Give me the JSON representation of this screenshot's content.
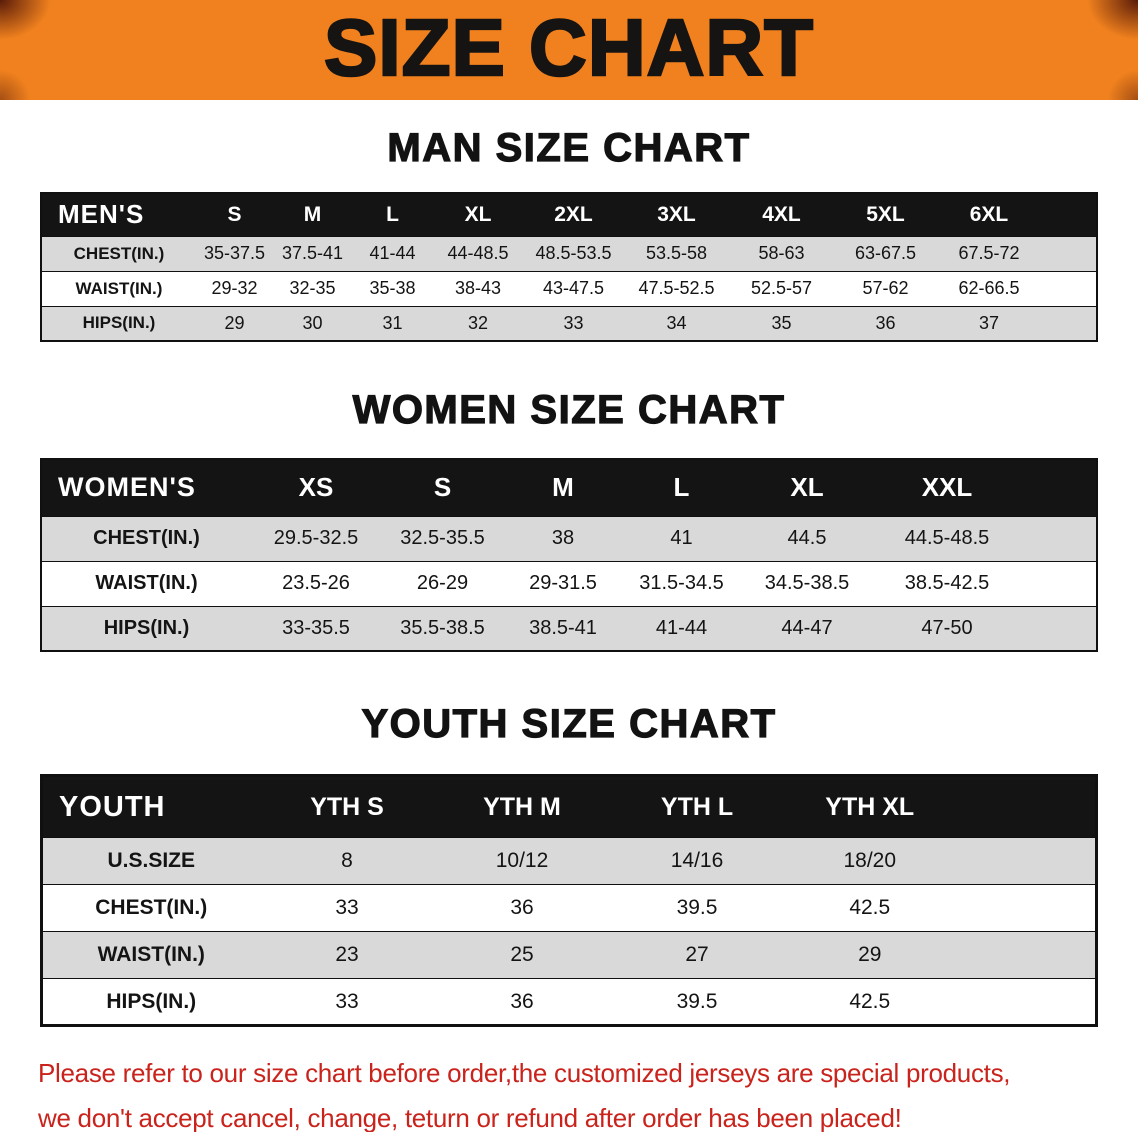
{
  "banner": {
    "title": "SIZE CHART"
  },
  "headings": {
    "men": "MAN SIZE CHART",
    "women": "WOMEN SIZE CHART",
    "youth": "YOUTH SIZE CHART"
  },
  "tables": {
    "men": {
      "header": [
        "MEN'S",
        "S",
        "M",
        "L",
        "XL",
        "2XL",
        "3XL",
        "4XL",
        "5XL",
        "6XL"
      ],
      "rows": [
        [
          "CHEST(IN.)",
          "35-37.5",
          "37.5-41",
          "41-44",
          "44-48.5",
          "48.5-53.5",
          "53.5-58",
          "58-63",
          "63-67.5",
          "67.5-72"
        ],
        [
          "WAIST(IN.)",
          "29-32",
          "32-35",
          "35-38",
          "38-43",
          "43-47.5",
          "47.5-52.5",
          "52.5-57",
          "57-62",
          "62-66.5"
        ],
        [
          "HIPS(IN.)",
          "29",
          "30",
          "31",
          "32",
          "33",
          "34",
          "35",
          "36",
          "37"
        ]
      ]
    },
    "women": {
      "header": [
        "WOMEN'S",
        "XS",
        "S",
        "M",
        "L",
        "XL",
        "XXL"
      ],
      "rows": [
        [
          "CHEST(IN.)",
          "29.5-32.5",
          "32.5-35.5",
          "38",
          "41",
          "44.5",
          "44.5-48.5"
        ],
        [
          "WAIST(IN.)",
          "23.5-26",
          "26-29",
          "29-31.5",
          "31.5-34.5",
          "34.5-38.5",
          "38.5-42.5"
        ],
        [
          "HIPS(IN.)",
          "33-35.5",
          "35.5-38.5",
          "38.5-41",
          "41-44",
          "44-47",
          "47-50"
        ]
      ]
    },
    "youth": {
      "header": [
        "YOUTH",
        "YTH S",
        "YTH M",
        "YTH L",
        "YTH XL"
      ],
      "rows": [
        [
          "U.S.SIZE",
          "8",
          "10/12",
          "14/16",
          "18/20"
        ],
        [
          "CHEST(IN.)",
          "33",
          "36",
          "39.5",
          "42.5"
        ],
        [
          "WAIST(IN.)",
          "23",
          "25",
          "27",
          "29"
        ],
        [
          "HIPS(IN.)",
          "33",
          "36",
          "39.5",
          "42.5"
        ]
      ]
    }
  },
  "disclaimer": {
    "line1": "Please refer to our size chart before order,the customized jerseys are special products,",
    "line2": "we don't accept cancel, change, teturn or refund after order has been placed!"
  },
  "colors": {
    "banner_bg": "#f0811e",
    "banner_text": "#161413",
    "table_header_bg": "#141414",
    "table_header_text": "#ffffff",
    "row_shaded": "#d9d9d9",
    "row_plain": "#ffffff",
    "disclaimer_text": "#c9231c"
  }
}
